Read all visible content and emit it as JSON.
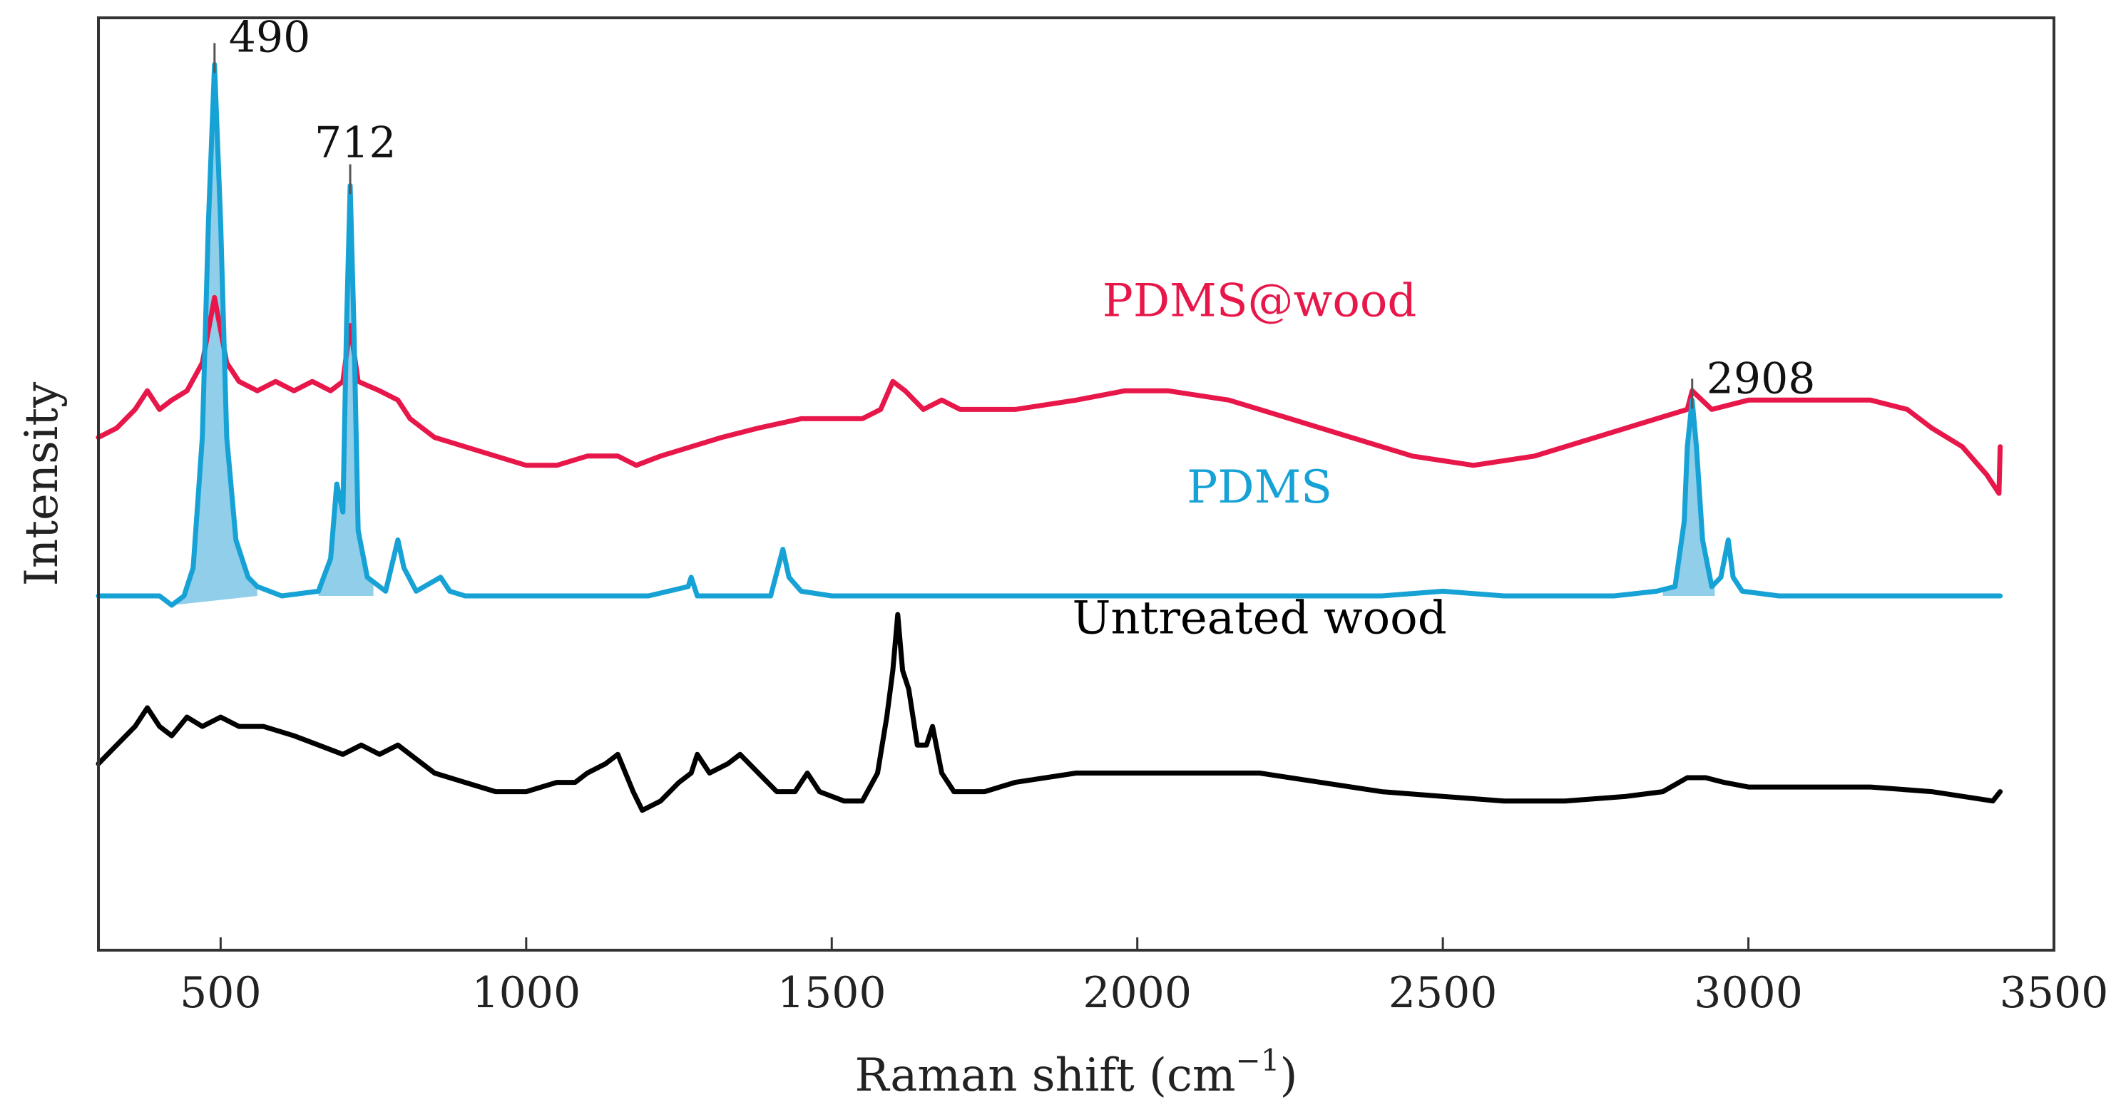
{
  "chart_data": {
    "type": "line",
    "title": "",
    "xlabel": "Raman shift (cm",
    "xlabel_sup": "−1",
    "xlabel_close": ")",
    "ylabel": "Intensity",
    "xlim": [
      300,
      3500
    ],
    "ylim": [
      0,
      100
    ],
    "xticks": [
      500,
      1000,
      1500,
      2000,
      2500,
      3000,
      3500
    ],
    "yticks_visible": false,
    "grid": false,
    "legend": "none (inline labels)",
    "series": [
      {
        "name": "PDMS@wood",
        "color": "#e8174a",
        "label_anchor": [
          2200,
          68
        ],
        "points": [
          [
            300,
            55
          ],
          [
            330,
            56
          ],
          [
            360,
            58
          ],
          [
            380,
            60
          ],
          [
            400,
            58
          ],
          [
            420,
            59
          ],
          [
            445,
            60
          ],
          [
            470,
            63
          ],
          [
            490,
            70
          ],
          [
            510,
            63
          ],
          [
            530,
            61
          ],
          [
            560,
            60
          ],
          [
            590,
            61
          ],
          [
            620,
            60
          ],
          [
            650,
            61
          ],
          [
            680,
            60
          ],
          [
            700,
            61
          ],
          [
            712,
            67
          ],
          [
            725,
            61
          ],
          [
            760,
            60
          ],
          [
            790,
            59
          ],
          [
            810,
            57
          ],
          [
            850,
            55
          ],
          [
            900,
            54
          ],
          [
            950,
            53
          ],
          [
            1000,
            52
          ],
          [
            1050,
            52
          ],
          [
            1100,
            53
          ],
          [
            1150,
            53
          ],
          [
            1180,
            52
          ],
          [
            1220,
            53
          ],
          [
            1270,
            54
          ],
          [
            1320,
            55
          ],
          [
            1380,
            56
          ],
          [
            1450,
            57
          ],
          [
            1500,
            57
          ],
          [
            1550,
            57
          ],
          [
            1580,
            58
          ],
          [
            1600,
            61
          ],
          [
            1620,
            60
          ],
          [
            1650,
            58
          ],
          [
            1680,
            59
          ],
          [
            1710,
            58
          ],
          [
            1760,
            58
          ],
          [
            1800,
            58
          ],
          [
            1900,
            59
          ],
          [
            1980,
            60
          ],
          [
            2050,
            60
          ],
          [
            2150,
            59
          ],
          [
            2250,
            57
          ],
          [
            2350,
            55
          ],
          [
            2450,
            53
          ],
          [
            2550,
            52
          ],
          [
            2650,
            53
          ],
          [
            2750,
            55
          ],
          [
            2850,
            57
          ],
          [
            2900,
            58
          ],
          [
            2908,
            60
          ],
          [
            2940,
            58
          ],
          [
            3000,
            59
          ],
          [
            3100,
            59
          ],
          [
            3200,
            59
          ],
          [
            3260,
            58
          ],
          [
            3300,
            56
          ],
          [
            3350,
            54
          ],
          [
            3390,
            51
          ],
          [
            3410,
            49
          ],
          [
            3412,
            54
          ]
        ]
      },
      {
        "name": "PDMS",
        "color": "#17a2d6",
        "label_anchor": [
          2200,
          48
        ],
        "fill_color": "#7cc5e6",
        "filled_peaks": [
          {
            "start": 420,
            "end": 560,
            "base_start": 37,
            "base_end": 38
          },
          {
            "start": 660,
            "end": 750,
            "base_start": 38,
            "base_end": 38
          },
          {
            "start": 2860,
            "end": 2945,
            "base_start": 38,
            "base_end": 38
          }
        ],
        "points": [
          [
            300,
            38
          ],
          [
            400,
            38
          ],
          [
            420,
            37
          ],
          [
            440,
            38
          ],
          [
            455,
            41
          ],
          [
            470,
            55
          ],
          [
            480,
            78
          ],
          [
            490,
            95
          ],
          [
            500,
            78
          ],
          [
            510,
            55
          ],
          [
            525,
            44
          ],
          [
            545,
            40
          ],
          [
            560,
            39
          ],
          [
            600,
            38
          ],
          [
            660,
            38.5
          ],
          [
            680,
            42
          ],
          [
            690,
            50
          ],
          [
            700,
            47
          ],
          [
            706,
            67
          ],
          [
            712,
            82
          ],
          [
            718,
            67
          ],
          [
            725,
            45
          ],
          [
            740,
            40
          ],
          [
            770,
            38.5
          ],
          [
            790,
            44
          ],
          [
            800,
            41
          ],
          [
            820,
            38.5
          ],
          [
            860,
            40
          ],
          [
            875,
            38.5
          ],
          [
            900,
            38
          ],
          [
            1000,
            38
          ],
          [
            1200,
            38
          ],
          [
            1265,
            39
          ],
          [
            1270,
            40
          ],
          [
            1280,
            38
          ],
          [
            1300,
            38
          ],
          [
            1400,
            38
          ],
          [
            1420,
            43
          ],
          [
            1430,
            40
          ],
          [
            1450,
            38.5
          ],
          [
            1500,
            38
          ],
          [
            1600,
            38
          ],
          [
            1800,
            38
          ],
          [
            2000,
            38
          ],
          [
            2200,
            38
          ],
          [
            2400,
            38
          ],
          [
            2500,
            38.5
          ],
          [
            2600,
            38
          ],
          [
            2780,
            38
          ],
          [
            2850,
            38.5
          ],
          [
            2880,
            39
          ],
          [
            2895,
            46
          ],
          [
            2900,
            54
          ],
          [
            2908,
            59
          ],
          [
            2915,
            54
          ],
          [
            2925,
            44
          ],
          [
            2940,
            39
          ],
          [
            2955,
            40
          ],
          [
            2967,
            44
          ],
          [
            2975,
            40
          ],
          [
            2990,
            38.5
          ],
          [
            3050,
            38
          ],
          [
            3200,
            38
          ],
          [
            3300,
            38
          ],
          [
            3412,
            38
          ]
        ]
      },
      {
        "name": "Untreated wood",
        "color": "#000000",
        "label_anchor": [
          2200,
          34
        ],
        "points": [
          [
            300,
            20
          ],
          [
            330,
            22
          ],
          [
            360,
            24
          ],
          [
            380,
            26
          ],
          [
            400,
            24
          ],
          [
            420,
            23
          ],
          [
            445,
            25
          ],
          [
            470,
            24
          ],
          [
            500,
            25
          ],
          [
            530,
            24
          ],
          [
            570,
            24
          ],
          [
            620,
            23
          ],
          [
            660,
            22
          ],
          [
            700,
            21
          ],
          [
            730,
            22
          ],
          [
            760,
            21
          ],
          [
            790,
            22
          ],
          [
            810,
            21
          ],
          [
            850,
            19
          ],
          [
            900,
            18
          ],
          [
            950,
            17
          ],
          [
            1000,
            17
          ],
          [
            1050,
            18
          ],
          [
            1080,
            18
          ],
          [
            1100,
            19
          ],
          [
            1130,
            20
          ],
          [
            1150,
            21
          ],
          [
            1175,
            17
          ],
          [
            1190,
            15
          ],
          [
            1220,
            16
          ],
          [
            1250,
            18
          ],
          [
            1270,
            19
          ],
          [
            1280,
            21
          ],
          [
            1300,
            19
          ],
          [
            1330,
            20
          ],
          [
            1350,
            21
          ],
          [
            1380,
            19
          ],
          [
            1410,
            17
          ],
          [
            1440,
            17
          ],
          [
            1460,
            19
          ],
          [
            1480,
            17
          ],
          [
            1520,
            16
          ],
          [
            1550,
            16
          ],
          [
            1575,
            19
          ],
          [
            1590,
            25
          ],
          [
            1600,
            30
          ],
          [
            1608,
            36
          ],
          [
            1616,
            30
          ],
          [
            1626,
            28
          ],
          [
            1640,
            22
          ],
          [
            1655,
            22
          ],
          [
            1665,
            24
          ],
          [
            1680,
            19
          ],
          [
            1700,
            17
          ],
          [
            1750,
            17
          ],
          [
            1800,
            18
          ],
          [
            1900,
            19
          ],
          [
            2000,
            19
          ],
          [
            2100,
            19
          ],
          [
            2200,
            19
          ],
          [
            2300,
            18
          ],
          [
            2400,
            17
          ],
          [
            2500,
            16.5
          ],
          [
            2600,
            16
          ],
          [
            2700,
            16
          ],
          [
            2800,
            16.5
          ],
          [
            2860,
            17
          ],
          [
            2900,
            18.5
          ],
          [
            2930,
            18.5
          ],
          [
            2960,
            18
          ],
          [
            3000,
            17.5
          ],
          [
            3100,
            17.5
          ],
          [
            3200,
            17.5
          ],
          [
            3300,
            17
          ],
          [
            3400,
            16
          ],
          [
            3412,
            17
          ]
        ]
      }
    ],
    "annotations": [
      {
        "text": "490",
        "x": 490,
        "y": 95,
        "series": "PDMS"
      },
      {
        "text": "712",
        "x": 712,
        "y": 82,
        "series": "PDMS"
      },
      {
        "text": "2908",
        "x": 2908,
        "y": 59,
        "series": "PDMS"
      }
    ]
  }
}
